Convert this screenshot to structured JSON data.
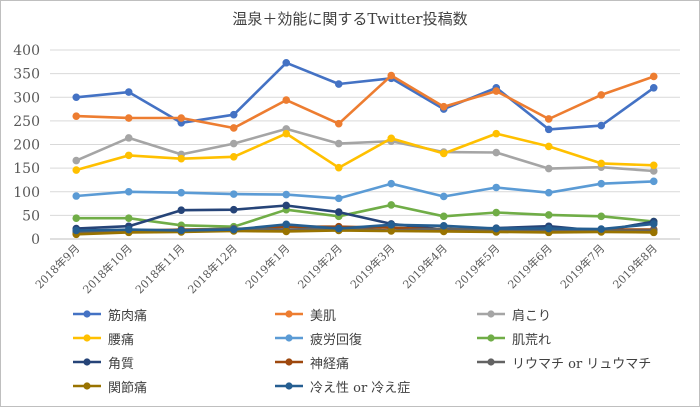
{
  "chart_data": {
    "type": "line",
    "title": "温泉＋効能に関するTwitter投稿数",
    "xlabel": "",
    "ylabel": "",
    "ylim": [
      0,
      400
    ],
    "yticks": [
      0,
      50,
      100,
      150,
      200,
      250,
      300,
      350,
      400
    ],
    "grid": true,
    "legend_position": "bottom",
    "categories": [
      "2018年9月",
      "2018年10月",
      "2018年11月",
      "2018年12月",
      "2019年1月",
      "2019年2月",
      "2019年3月",
      "2019年4月",
      "2019年5月",
      "2019年6月",
      "2019年7月",
      "2019年8月"
    ],
    "series": [
      {
        "name": "筋肉痛",
        "color": "#4472C4",
        "values": [
          300,
          311,
          246,
          263,
          373,
          328,
          340,
          275,
          320,
          232,
          240,
          320
        ]
      },
      {
        "name": "美肌",
        "color": "#ED7D31",
        "values": [
          260,
          256,
          256,
          235,
          294,
          244,
          346,
          280,
          313,
          254,
          305,
          344
        ]
      },
      {
        "name": "肩こり",
        "color": "#A5A5A5",
        "values": [
          166,
          214,
          179,
          202,
          233,
          202,
          207,
          184,
          183,
          149,
          152,
          144
        ]
      },
      {
        "name": "腰痛",
        "color": "#FFC000",
        "values": [
          146,
          177,
          170,
          174,
          223,
          151,
          213,
          181,
          223,
          196,
          160,
          156
        ]
      },
      {
        "name": "疲労回復",
        "color": "#5B9BD5",
        "values": [
          91,
          100,
          98,
          95,
          94,
          86,
          117,
          90,
          109,
          98,
          117,
          122
        ]
      },
      {
        "name": "肌荒れ",
        "color": "#70AD47",
        "values": [
          44,
          44,
          29,
          26,
          62,
          48,
          72,
          48,
          56,
          51,
          48,
          37
        ]
      },
      {
        "name": "角質",
        "color": "#264478",
        "values": [
          22,
          27,
          61,
          62,
          71,
          57,
          32,
          20,
          23,
          27,
          17,
          37
        ]
      },
      {
        "name": "神経痛",
        "color": "#9E480E",
        "values": [
          12,
          17,
          20,
          21,
          26,
          26,
          24,
          20,
          20,
          17,
          20,
          20
        ]
      },
      {
        "name": "リウマチ or リュウマチ",
        "color": "#636363",
        "values": [
          15,
          19,
          19,
          22,
          20,
          22,
          18,
          22,
          18,
          16,
          18,
          18
        ]
      },
      {
        "name": "関節痛",
        "color": "#997300",
        "values": [
          10,
          14,
          15,
          17,
          16,
          18,
          17,
          16,
          15,
          14,
          15,
          14
        ]
      },
      {
        "name": "冷え性 or 冷え症",
        "color": "#255E91",
        "values": [
          18,
          20,
          18,
          20,
          31,
          22,
          30,
          28,
          22,
          22,
          21,
          32
        ]
      }
    ]
  }
}
